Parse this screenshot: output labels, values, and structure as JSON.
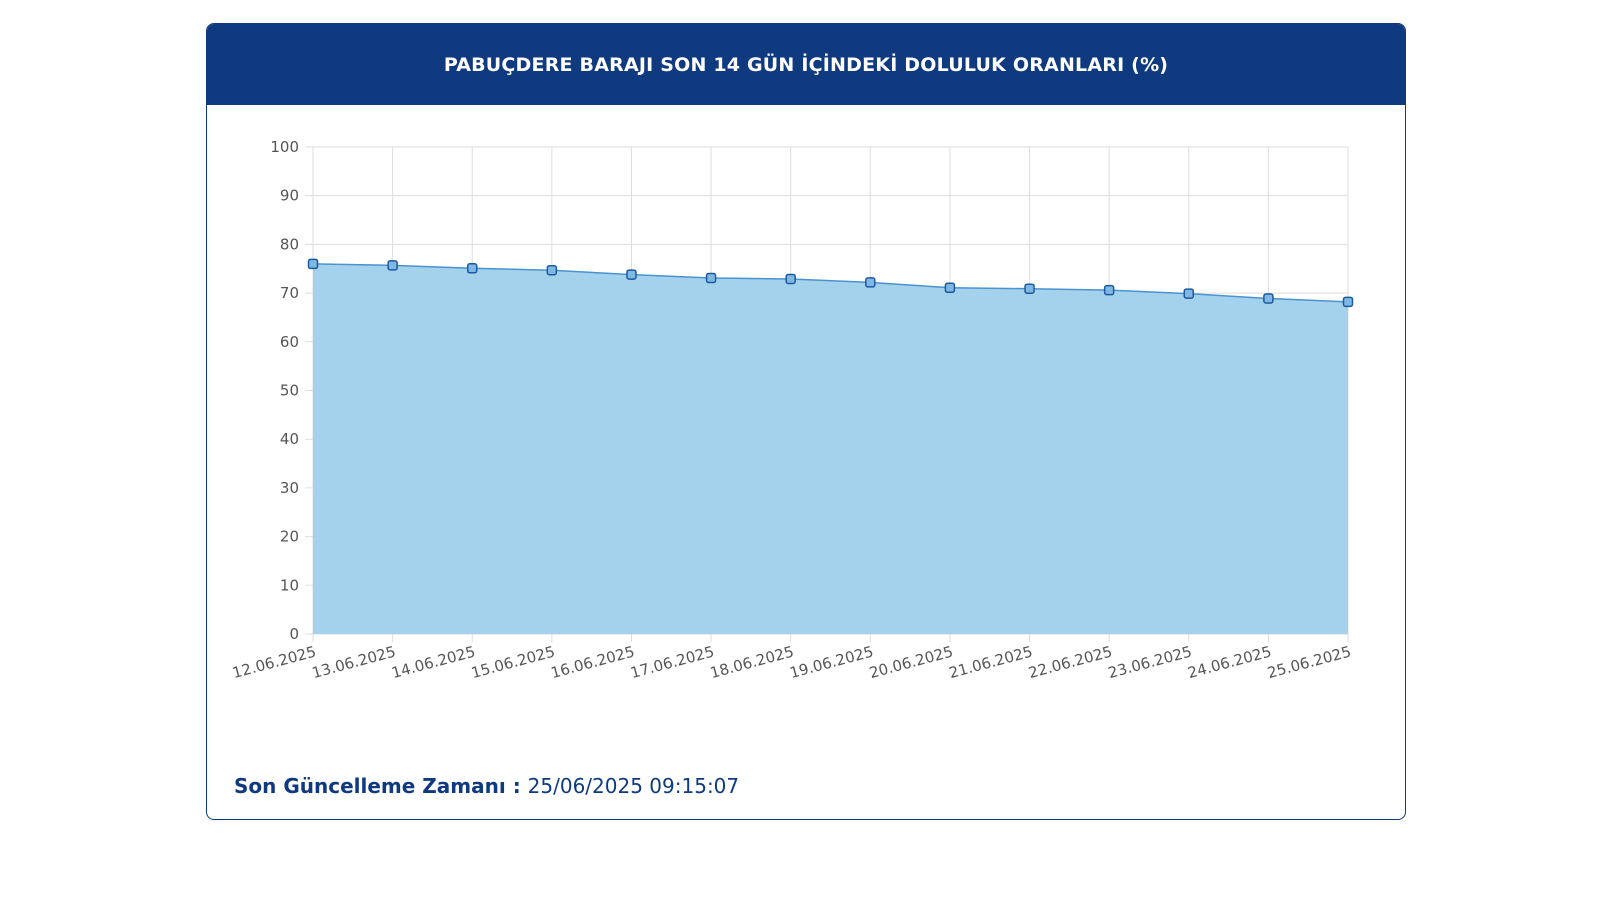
{
  "header": {
    "title": "PABUÇDERE BARAJI SON 14 GÜN İÇİNDEKİ DOLULUK ORANLARI (%)"
  },
  "footer": {
    "label": "Son Güncelleme Zamanı",
    "separator": " : ",
    "value": "25/06/2025 09:15:07"
  },
  "colors": {
    "brand": "#0f3a80",
    "area_fill": "#9fd0ec",
    "line": "#4a93cf",
    "marker_fill": "#7fb8e4",
    "marker_stroke": "#1c5a9e",
    "grid": "#dddddd"
  },
  "chart_data": {
    "type": "area",
    "title": "PABUÇDERE BARAJI SON 14 GÜN İÇİNDEKİ DOLULUK ORANLARI (%)",
    "xlabel": "",
    "ylabel": "",
    "categories": [
      "12.06.2025",
      "13.06.2025",
      "14.06.2025",
      "15.06.2025",
      "16.06.2025",
      "17.06.2025",
      "18.06.2025",
      "19.06.2025",
      "20.06.2025",
      "21.06.2025",
      "22.06.2025",
      "23.06.2025",
      "24.06.2025",
      "25.06.2025"
    ],
    "series": [
      {
        "values": [
          76.0,
          75.7,
          75.1,
          74.7,
          73.8,
          73.1,
          72.9,
          72.2,
          71.1,
          70.9,
          70.6,
          69.9,
          68.9,
          68.2
        ]
      }
    ],
    "ylim": [
      0,
      100
    ],
    "yticks": [
      0,
      10,
      20,
      30,
      40,
      50,
      60,
      70,
      80,
      90,
      100
    ],
    "grid": true,
    "legend": "none"
  }
}
